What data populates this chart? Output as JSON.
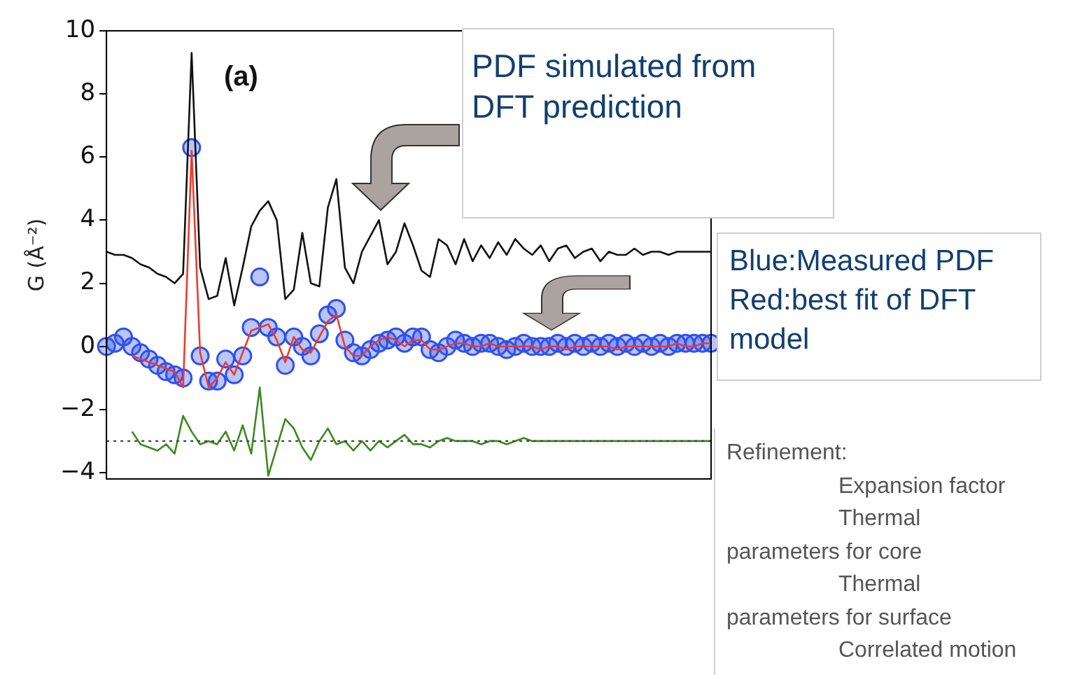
{
  "chart_data": {
    "type": "line",
    "ylabel": "G (Å⁻²)",
    "ylim": [
      -4.2,
      10
    ],
    "yticks": [
      -4,
      -2,
      0,
      2,
      4,
      6,
      8,
      10
    ],
    "grid": false,
    "legend": false,
    "tick_labels": "y",
    "categories": [
      null,
      null,
      null,
      null,
      null,
      null,
      null,
      null,
      null,
      null,
      null,
      null,
      null,
      null,
      null,
      null,
      null,
      null,
      null,
      null,
      null,
      null,
      null,
      null,
      null,
      null,
      null,
      null,
      null,
      null,
      null,
      null,
      null,
      null,
      null,
      null,
      null,
      null,
      null,
      null,
      null,
      null,
      null,
      null,
      null,
      null,
      null,
      null,
      null,
      null,
      null,
      null,
      null,
      null,
      null,
      null,
      null,
      null,
      null,
      null,
      null,
      null,
      null,
      null,
      null,
      null,
      null,
      null,
      null,
      null,
      null,
      null
    ],
    "series": [
      {
        "type": "line",
        "color": "#111111",
        "marker": "none",
        "line_style": "solid",
        "values": [
          3.0,
          2.9,
          2.9,
          2.8,
          2.6,
          2.5,
          2.3,
          2.2,
          2.0,
          2.3,
          9.3,
          2.5,
          1.5,
          1.6,
          2.8,
          1.3,
          2.5,
          3.8,
          4.3,
          4.6,
          4.0,
          1.5,
          1.8,
          3.6,
          2.0,
          1.9,
          4.4,
          5.3,
          2.5,
          2.0,
          3.0,
          3.5,
          4.0,
          2.6,
          3.0,
          3.9,
          3.2,
          2.4,
          2.2,
          3.4,
          3.2,
          2.6,
          3.4,
          2.7,
          3.2,
          2.8,
          3.3,
          2.9,
          3.4,
          3.1,
          2.9,
          3.2,
          2.7,
          3.1,
          3.2,
          2.8,
          3.0,
          3.1,
          2.7,
          3.0,
          2.9,
          2.9,
          3.1,
          2.9,
          3.0,
          3.0,
          2.9,
          3.0,
          3.0,
          3.0,
          3.0,
          3.0
        ]
      },
      {
        "type": "scatter",
        "color": "#3050f0",
        "marker": "circle",
        "values": [
          0.0,
          0.1,
          0.3,
          0.0,
          -0.2,
          -0.4,
          -0.6,
          -0.8,
          -0.9,
          -1.0,
          6.3,
          -0.3,
          -1.1,
          -1.1,
          -0.4,
          -0.9,
          -0.3,
          0.6,
          2.2,
          0.6,
          0.3,
          -0.6,
          0.3,
          0.0,
          -0.3,
          0.4,
          1.0,
          1.2,
          0.2,
          -0.2,
          -0.3,
          -0.1,
          0.1,
          0.2,
          0.3,
          0.1,
          0.3,
          0.3,
          -0.1,
          -0.2,
          0.0,
          0.2,
          0.1,
          0.0,
          0.1,
          0.1,
          0.0,
          -0.1,
          0.0,
          0.1,
          0.0,
          0.0,
          0.0,
          0.1,
          0.0,
          0.1,
          0.0,
          0.1,
          0.0,
          0.1,
          0.0,
          0.1,
          0.0,
          0.1,
          0.0,
          0.1,
          0.0,
          0.1,
          0.1,
          0.1,
          0.1,
          0.1
        ]
      },
      {
        "type": "line",
        "color": "#f03a2a",
        "marker": "none",
        "line_style": "solid",
        "values": [
          null,
          null,
          null,
          -0.3,
          -0.4,
          -0.5,
          -0.6,
          -0.7,
          -0.8,
          -1.3,
          6.2,
          -0.2,
          -1.3,
          -1.0,
          -0.5,
          -0.9,
          -0.2,
          0.5,
          0.6,
          0.7,
          0.2,
          -0.5,
          0.3,
          -0.1,
          -0.2,
          0.3,
          0.8,
          1.0,
          0.0,
          -0.3,
          -0.3,
          0.0,
          0.2,
          0.3,
          0.2,
          0.0,
          0.2,
          0.2,
          -0.1,
          -0.1,
          0.0,
          0.1,
          0.1,
          0.0,
          0.0,
          0.1,
          0.0,
          0.0,
          0.0,
          0.0,
          0.0,
          -0.1,
          0.0,
          0.0,
          -0.1,
          0.0,
          0.0,
          0.0,
          0.0,
          0.0,
          -0.1,
          0.0,
          0.0,
          0.0,
          0.0,
          0.0,
          0.0,
          0.1,
          0.0,
          0.0,
          0.1,
          0.1
        ]
      },
      {
        "type": "line",
        "color": "#3a8a1e",
        "marker": "none",
        "line_style": "solid",
        "values": [
          null,
          null,
          null,
          -2.7,
          -3.1,
          -3.2,
          -3.3,
          -3.1,
          -3.4,
          -2.2,
          -2.7,
          -3.1,
          -3.0,
          -3.1,
          -2.7,
          -3.3,
          -2.5,
          -3.4,
          -1.3,
          -4.1,
          -3.2,
          -2.3,
          -2.6,
          -3.2,
          -3.6,
          -3.0,
          -2.6,
          -3.1,
          -3.0,
          -3.3,
          -3.0,
          -3.3,
          -3.0,
          -3.2,
          -3.0,
          -2.8,
          -3.1,
          -3.1,
          -3.2,
          -3.0,
          -2.9,
          -3.0,
          -3.0,
          -3.0,
          -3.1,
          -3.0,
          -3.0,
          -3.1,
          -3.0,
          -2.9,
          -3.0,
          -3.0,
          -3.0,
          -3.0,
          -3.0,
          -3.0,
          -3.0,
          -3.0,
          -3.0,
          -3.0,
          -3.0,
          -3.0,
          -3.0,
          -3.0,
          -3.0,
          -3.0,
          -3.0,
          -3.0,
          -3.0,
          -3.0,
          -3.0,
          -3.0
        ]
      }
    ],
    "ref_lines": [
      {
        "axis": "y",
        "value": -3,
        "color": "#444444",
        "line_style": "dotted"
      }
    ],
    "annotations": [
      "(a)",
      "PDF simulated from DFT prediction",
      "Blue:Measured PDF Red:best fit of DFT model",
      "Refinement:",
      "Expansion factor",
      "Thermal parameters for core",
      "Thermal parameters for surface",
      "Correlated motion"
    ]
  }
}
